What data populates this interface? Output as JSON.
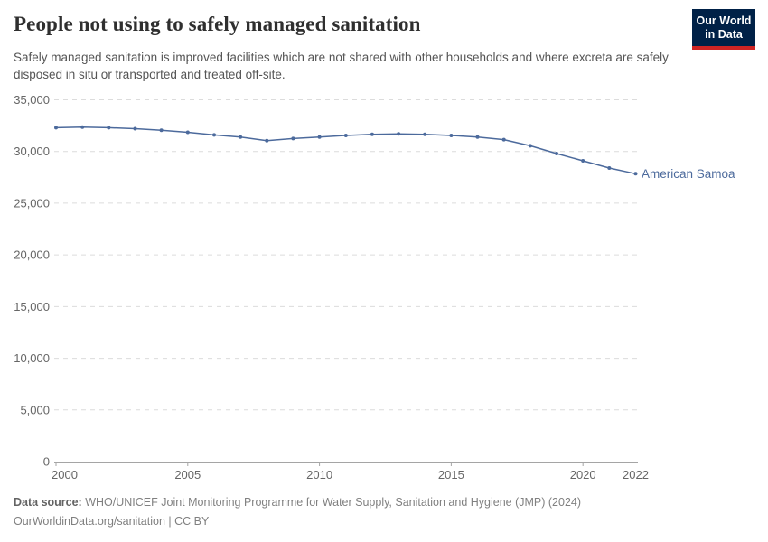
{
  "header": {
    "title": "People not using to safely managed sanitation",
    "subtitle": "Safely managed sanitation is improved facilities which are not shared with other households and where excreta are safely disposed in situ or transported and treated off-site.",
    "logo": {
      "line1": "Our World",
      "line2": "in Data",
      "bg_color": "#002147",
      "bar_color": "#cf2423"
    }
  },
  "chart_data": {
    "type": "line",
    "title": "People not using to safely managed sanitation",
    "xlabel": "",
    "ylabel": "",
    "x": [
      2000,
      2001,
      2002,
      2003,
      2004,
      2005,
      2006,
      2007,
      2008,
      2009,
      2010,
      2011,
      2012,
      2013,
      2014,
      2015,
      2016,
      2017,
      2018,
      2019,
      2020,
      2021,
      2022
    ],
    "series": [
      {
        "name": "American Samoa",
        "color": "#4C6A9C",
        "values": [
          32300,
          32350,
          32300,
          32200,
          32050,
          31850,
          31600,
          31400,
          31050,
          31250,
          31400,
          31550,
          31650,
          31700,
          31650,
          31550,
          31400,
          31150,
          30550,
          29800,
          29100,
          28400,
          27850
        ]
      }
    ],
    "ylim": [
      0,
      35000
    ],
    "yticks": [
      0,
      5000,
      10000,
      15000,
      20000,
      25000,
      30000,
      35000
    ],
    "ytick_labels": [
      "0",
      "5,000",
      "10,000",
      "15,000",
      "20,000",
      "25,000",
      "30,000",
      "35,000"
    ],
    "xticks": [
      2000,
      2005,
      2010,
      2015,
      2020,
      2022
    ],
    "grid": "horizontal-dashed",
    "legend_position": "end-of-line-label",
    "grid_color": "#dcdcdc",
    "axis_color": "#a5a5a5",
    "tick_label_color": "#666666"
  },
  "footer": {
    "datasource_label": "Data source:",
    "datasource_text": "WHO/UNICEF Joint Monitoring Programme for Water Supply, Sanitation and Hygiene (JMP) (2024)",
    "license_line": "OurWorldinData.org/sanitation | CC BY"
  }
}
